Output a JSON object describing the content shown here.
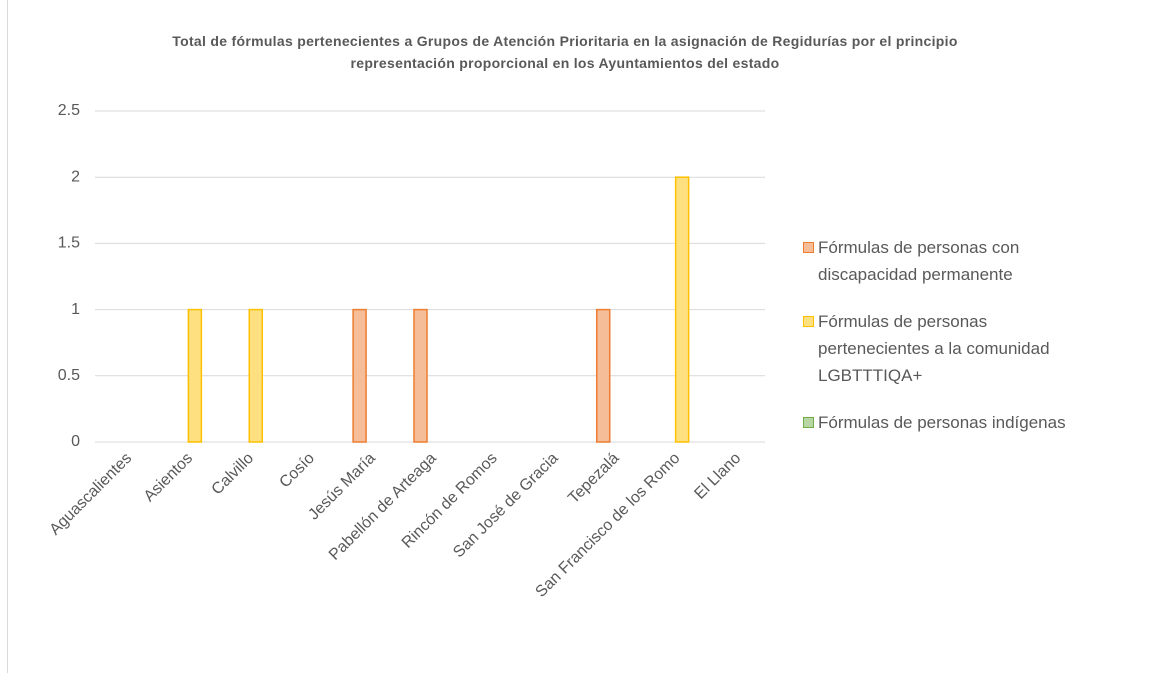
{
  "chart_data": {
    "type": "bar",
    "title": "Total de fórmulas pertenecientes a Grupos de Atención Prioritaria en la asignación de Regidurías por el principio representación proporcional en los Ayuntamientos del estado",
    "categories": [
      "Aguascalientes",
      "Asientos",
      "Calvillo",
      "Cosío",
      "Jesús María",
      "Pabellón de Arteaga",
      "Rincón de Romos",
      "San José de Gracia",
      "Tepezalá",
      "San Francisco de los Romo",
      "El Llano"
    ],
    "series": [
      {
        "name": "Fórmulas de personas con discapacidad permanente",
        "color": "#ed7d31",
        "values": [
          0,
          0,
          0,
          0,
          1,
          1,
          0,
          0,
          1,
          0,
          0
        ]
      },
      {
        "name": "Fórmulas de personas pertenecientes a la comunidad LGBTTTIQA+",
        "color": "#ffc000",
        "values": [
          0,
          1,
          1,
          0,
          0,
          0,
          0,
          0,
          0,
          2,
          0
        ]
      },
      {
        "name": "Fórmulas de personas indígenas",
        "color": "#70ad47",
        "values": [
          0,
          0,
          0,
          0,
          0,
          0,
          0,
          0,
          0,
          0,
          0
        ]
      }
    ],
    "ylim": [
      0,
      2.5
    ],
    "yticks": [
      0,
      0.5,
      1,
      1.5,
      2,
      2.5
    ],
    "grid": true,
    "legend": "right"
  }
}
